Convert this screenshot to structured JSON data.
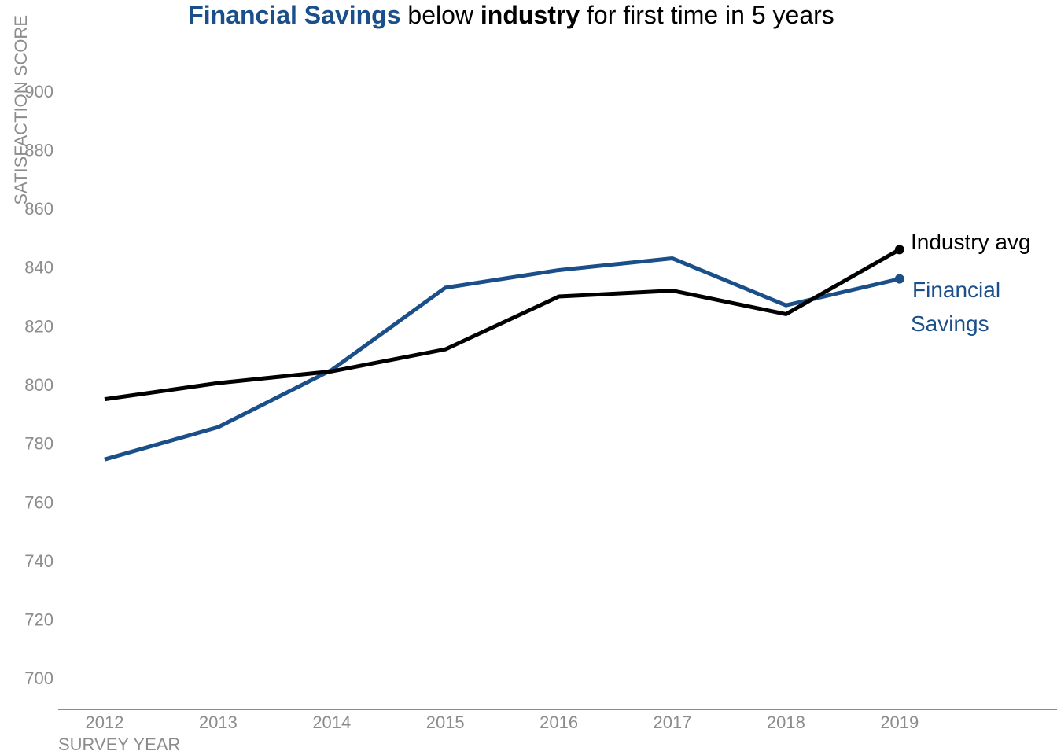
{
  "chart_data": {
    "type": "line",
    "title": {
      "part1": "Financial Savings",
      "part2": " below ",
      "part3": "industry",
      "part4": " for first time in 5 years"
    },
    "xlabel": "SURVEY YEAR",
    "ylabel": "SATISFACTION SCORE",
    "x": [
      "2012",
      "2013",
      "2014",
      "2015",
      "2016",
      "2017",
      "2018",
      "2019"
    ],
    "ylim": [
      690,
      910
    ],
    "yticks": [
      "700",
      "720",
      "740",
      "760",
      "780",
      "800",
      "820",
      "840",
      "860",
      "880",
      "900"
    ],
    "grid": false,
    "series": [
      {
        "name": "Industry avg",
        "color": "#000000",
        "values": [
          795,
          800.5,
          804.5,
          812,
          830,
          832,
          824,
          846
        ]
      },
      {
        "name": "Financial Savings",
        "label_lines": [
          "Financial",
          "Savings"
        ],
        "color": "#1a4f8a",
        "values": [
          774.5,
          785.5,
          805,
          833,
          839,
          843,
          827,
          836
        ]
      }
    ]
  }
}
